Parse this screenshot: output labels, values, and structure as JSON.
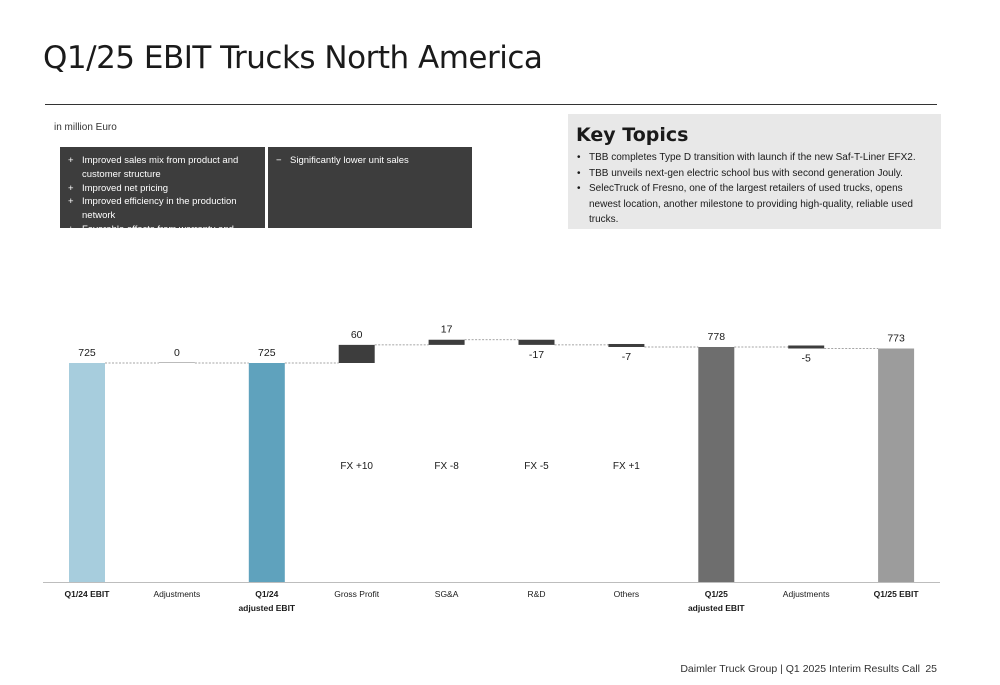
{
  "slide": {
    "title": "Q1/25 EBIT Trucks North America",
    "unit_note": "in million Euro",
    "footer_text": "Daimler Truck Group | Q1 2025 Interim Results Call",
    "page_number": "25"
  },
  "factors": {
    "positive": [
      {
        "sign": "+",
        "text": "Improved sales mix from product and customer structure"
      },
      {
        "sign": "+",
        "text": "Improved net pricing"
      },
      {
        "sign": "+",
        "text": "Improved efficiency in the production network"
      },
      {
        "sign": "+",
        "text": "Favorable effects from warranty and goodwill"
      }
    ],
    "negative": [
      {
        "sign": "−",
        "text": "Significantly lower unit sales"
      }
    ]
  },
  "key_topics": {
    "heading": "Key Topics",
    "items": [
      "TBB completes Type D transition with launch if the new Saf-T-Liner EFX2.",
      "TBB unveils next-gen electric school bus with second generation Jouly.",
      "SelecTruck of Fresno, one of the largest retailers of used trucks, opens newest location, another milestone to providing high-quality, reliable used trucks."
    ]
  },
  "chart_data": {
    "type": "bar",
    "subtype": "waterfall",
    "categories": [
      {
        "label": "Q1/24 EBIT",
        "label2": "",
        "bold": true
      },
      {
        "label": "Adjustments",
        "label2": "",
        "bold": false
      },
      {
        "label": "Q1/24",
        "label2": "adjusted EBIT",
        "bold": true
      },
      {
        "label": "Gross Profit",
        "label2": "",
        "bold": false
      },
      {
        "label": "SG&A",
        "label2": "",
        "bold": false
      },
      {
        "label": "R&D",
        "label2": "",
        "bold": false
      },
      {
        "label": "Others",
        "label2": "",
        "bold": false
      },
      {
        "label": "Q1/25",
        "label2": "adjusted EBIT",
        "bold": true
      },
      {
        "label": "Adjustments",
        "label2": "",
        "bold": false
      },
      {
        "label": "Q1/25 EBIT",
        "label2": "",
        "bold": true
      }
    ],
    "steps": [
      {
        "kind": "total",
        "value": 725,
        "label": "725",
        "color": "#a7cddd"
      },
      {
        "kind": "delta",
        "value": 0,
        "label": "0",
        "color": "#3d3d3d"
      },
      {
        "kind": "total",
        "value": 725,
        "label": "725",
        "color": "#5fa2bd"
      },
      {
        "kind": "delta",
        "value": 60,
        "label": "60",
        "color": "#3d3d3d"
      },
      {
        "kind": "delta",
        "value": 17,
        "label": "17",
        "color": "#3d3d3d"
      },
      {
        "kind": "delta",
        "value": -17,
        "label": "-17",
        "color": "#3d3d3d"
      },
      {
        "kind": "delta",
        "value": -7,
        "label": "-7",
        "color": "#3d3d3d"
      },
      {
        "kind": "total",
        "value": 778,
        "label": "778",
        "color": "#6e6e6e"
      },
      {
        "kind": "delta",
        "value": -5,
        "label": "-5",
        "color": "#3d3d3d"
      },
      {
        "kind": "total",
        "value": 773,
        "label": "773",
        "color": "#9c9c9c"
      }
    ],
    "annotations": [
      {
        "index": 3,
        "text": "FX +10"
      },
      {
        "index": 4,
        "text": "FX -8"
      },
      {
        "index": 5,
        "text": "FX -5"
      },
      {
        "index": 6,
        "text": "FX +1"
      }
    ],
    "ylim": [
      0,
      800
    ],
    "title": "",
    "xlabel": "",
    "ylabel": ""
  }
}
